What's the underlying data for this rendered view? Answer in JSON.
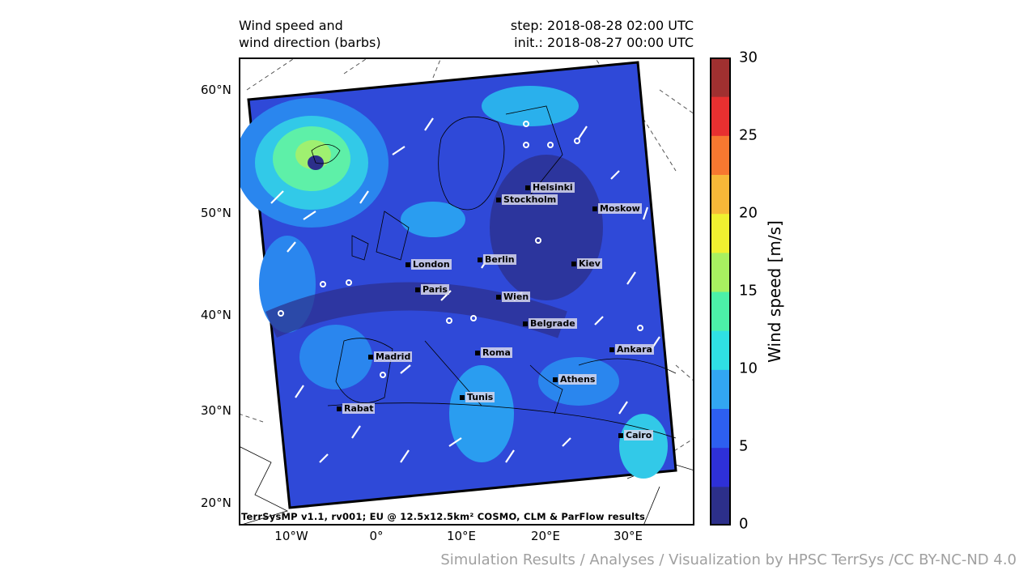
{
  "titles": {
    "left": "Wind speed and\nwind direction (barbs)",
    "right": "step: 2018-08-28 02:00 UTC\ninit.: 2018-08-27 00:00 UTC"
  },
  "map": {
    "latitude_labels": [
      "60°N",
      "50°N",
      "40°N",
      "30°N",
      "20°N"
    ],
    "longitude_labels": [
      "10°W",
      "0°",
      "10°E",
      "20°E",
      "30°E"
    ],
    "footer": "TerrSysMP v1.1, rv001; EU @ 12.5x12.5km² COSMO, CLM & ParFlow results",
    "cities": [
      "Helsinki",
      "Stockholm",
      "Moskow",
      "London",
      "Berlin",
      "Kiev",
      "Paris",
      "Wien",
      "Belgrade",
      "Madrid",
      "Roma",
      "Ankara",
      "Athens",
      "Tunis",
      "Rabat",
      "Cairo"
    ]
  },
  "colorbar": {
    "label": "Wind speed [m/s]",
    "ticks": [
      "0",
      "5",
      "10",
      "15",
      "20",
      "25",
      "30"
    ],
    "colors": [
      "#2c2f8a",
      "#2e30d8",
      "#2d5ff0",
      "#32a6f2",
      "#2fe0e4",
      "#4cf0a8",
      "#a8f060",
      "#f0f030",
      "#f8b838",
      "#f87830",
      "#e83030",
      "#a03030"
    ]
  },
  "credit": "Simulation Results / Analyses / Visualization by HPSC TerrSys /CC BY-NC-ND 4.0"
}
